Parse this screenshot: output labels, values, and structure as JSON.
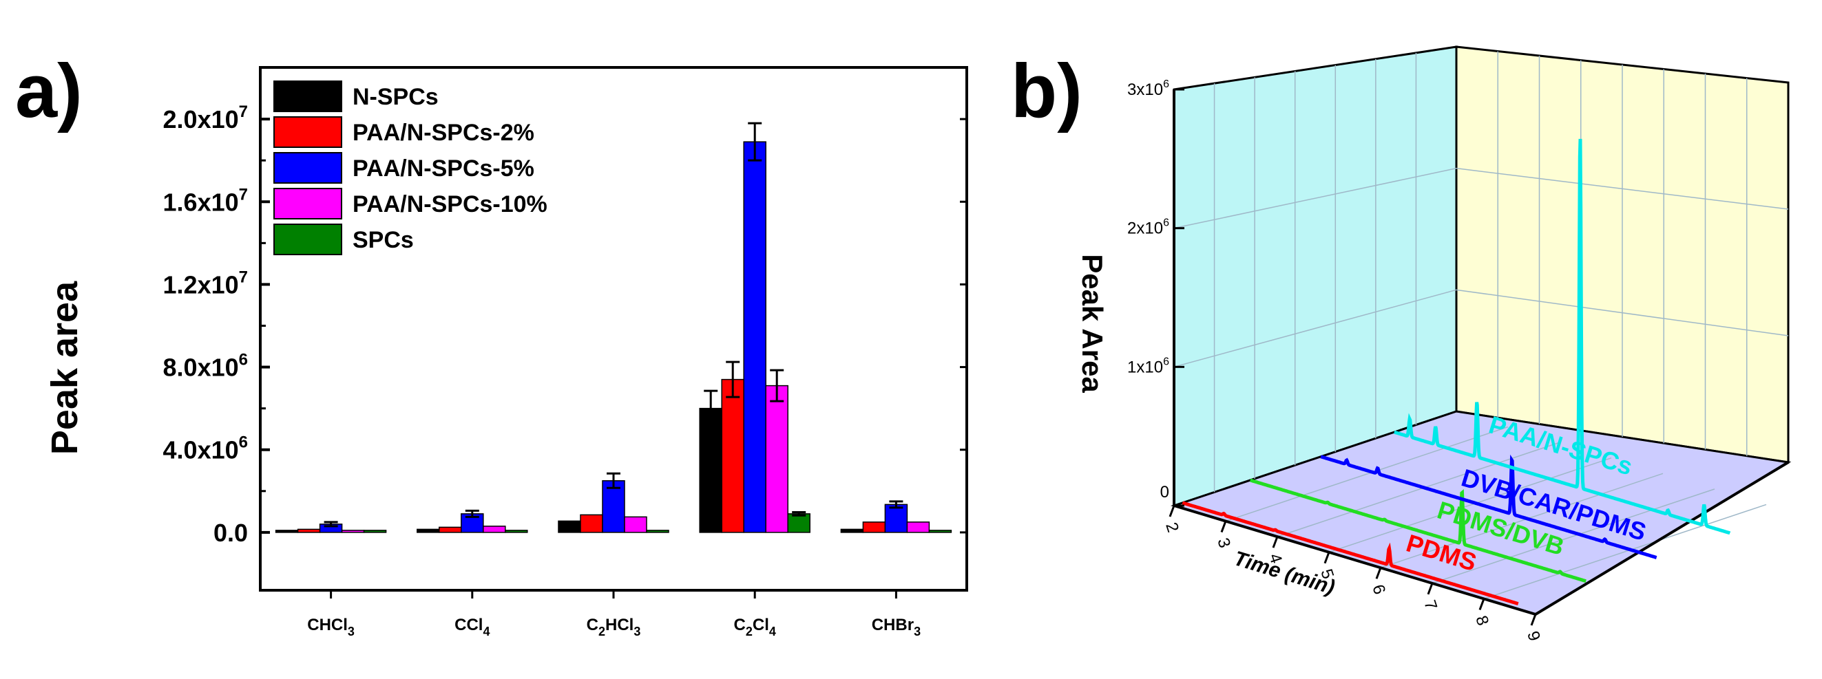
{
  "chart_data": [
    {
      "panel_label": "a)",
      "type": "bar",
      "ylabel": "Peak area",
      "xlabel": "",
      "ylim": [
        -2800000,
        22500000
      ],
      "y_ticks": [
        {
          "value": 0,
          "label": "0.0",
          "exp": ""
        },
        {
          "value": 4000000,
          "label": "4.0x10",
          "exp": "6"
        },
        {
          "value": 8000000,
          "label": "8.0x10",
          "exp": "6"
        },
        {
          "value": 12000000,
          "label": "1.2x10",
          "exp": "7"
        },
        {
          "value": 16000000,
          "label": "1.6x10",
          "exp": "7"
        },
        {
          "value": 20000000,
          "label": "2.0x10",
          "exp": "7"
        }
      ],
      "categories": [
        {
          "main": "CHCl",
          "sub": "3",
          "tail": ""
        },
        {
          "main": "CCl",
          "sub": "4",
          "tail": ""
        },
        {
          "main": "C",
          "sub": "2",
          "tail": "HCl",
          "sub2": "3"
        },
        {
          "main": "C",
          "sub": "2",
          "tail": "Cl",
          "sub2": "4"
        },
        {
          "main": "CHBr",
          "sub": "3",
          "tail": ""
        }
      ],
      "legend_position": "top-left",
      "series": [
        {
          "name": "N-SPCs",
          "color": "#000000",
          "values": [
            100000,
            150000,
            550000,
            6000000,
            150000
          ],
          "errors": [
            0,
            0,
            0,
            850000,
            0
          ]
        },
        {
          "name": "PAA/N-SPCs-2%",
          "color": "#ff0000",
          "values": [
            150000,
            250000,
            850000,
            7400000,
            500000
          ],
          "errors": [
            0,
            0,
            0,
            850000,
            0
          ]
        },
        {
          "name": "PAA/N-SPCs-5%",
          "color": "#0000ff",
          "values": [
            400000,
            900000,
            2500000,
            18900000,
            1350000
          ],
          "errors": [
            100000,
            150000,
            350000,
            900000,
            150000
          ]
        },
        {
          "name": "PAA/N-SPCs-10%",
          "color": "#ff00ff",
          "values": [
            100000,
            300000,
            750000,
            7100000,
            500000
          ],
          "errors": [
            0,
            0,
            0,
            750000,
            0
          ]
        },
        {
          "name": "SPCs",
          "color": "#008000",
          "values": [
            0,
            50000,
            50000,
            900000,
            50000
          ],
          "errors": [
            0,
            0,
            0,
            80000,
            0
          ]
        }
      ]
    },
    {
      "panel_label": "b)",
      "type": "line",
      "zlabel": "Peak Area",
      "xlabel": "Time (min)",
      "x_ticks": [
        "2",
        "3",
        "4",
        "5",
        "6",
        "7",
        "8",
        "9"
      ],
      "z_ticks": [
        {
          "label": "0",
          "exp": ""
        },
        {
          "label": "1x10",
          "exp": "6"
        },
        {
          "label": "2x10",
          "exp": "6"
        },
        {
          "label": "3x10",
          "exp": "6"
        }
      ],
      "zlim": [
        0,
        3000000
      ],
      "xlim": [
        2,
        9
      ],
      "series": [
        {
          "name": "PDMS",
          "color": "#ff0000",
          "peaks": [
            [
              2.8,
              12000
            ],
            [
              3.8,
              6000
            ],
            [
              6.0,
              120000
            ]
          ]
        },
        {
          "name": "PDMS/DVB",
          "color": "#22dd22",
          "peaks": [
            [
              3.5,
              8000
            ],
            [
              4.6,
              8000
            ],
            [
              6.1,
              380000
            ],
            [
              8.0,
              12000
            ]
          ]
        },
        {
          "name": "DVB/CAR/PDMS",
          "color": "#0000ff",
          "peaks": [
            [
              2.5,
              30000
            ],
            [
              3.1,
              40000
            ],
            [
              5.7,
              400000
            ],
            [
              7.5,
              20000
            ]
          ]
        },
        {
          "name": "PAA/N-SPCs",
          "color": "#00e8e8",
          "peaks": [
            [
              2.3,
              130000
            ],
            [
              2.8,
              130000
            ],
            [
              3.6,
              400000
            ],
            [
              5.6,
              2550000
            ],
            [
              7.3,
              30000
            ],
            [
              8.0,
              150000
            ]
          ]
        }
      ]
    }
  ]
}
